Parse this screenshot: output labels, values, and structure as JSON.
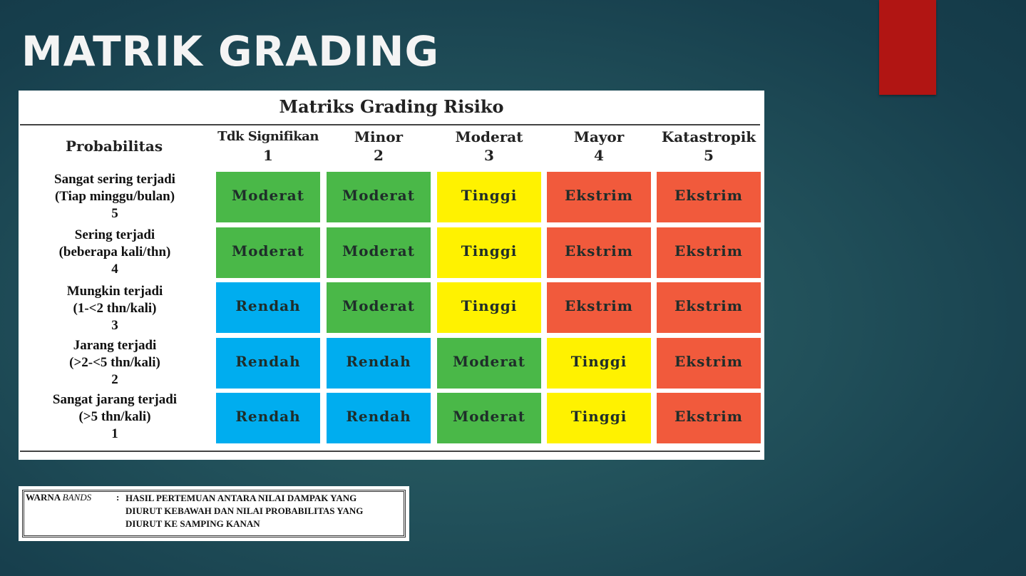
{
  "slide": {
    "title": "MATRIK GRADING",
    "accent_color": "#b11513"
  },
  "matrix": {
    "title": "Matriks Grading Risiko",
    "probability_header": "Probabilitas",
    "columns": [
      {
        "name": "Tdk Signifikan",
        "num": "1"
      },
      {
        "name": "Minor",
        "num": "2"
      },
      {
        "name": "Moderat",
        "num": "3"
      },
      {
        "name": "Mayor",
        "num": "4"
      },
      {
        "name": "Katastropik",
        "num": "5"
      }
    ],
    "rows": [
      {
        "line1": "Sangat sering terjadi",
        "line2": "(Tiap minggu/bulan)",
        "num": "5",
        "cells": [
          "Moderat",
          "Moderat",
          "Tinggi",
          "Ekstrim",
          "Ekstrim"
        ]
      },
      {
        "line1": "Sering terjadi",
        "line2": "(beberapa kali/thn)",
        "num": "4",
        "cells": [
          "Moderat",
          "Moderat",
          "Tinggi",
          "Ekstrim",
          "Ekstrim"
        ]
      },
      {
        "line1": "Mungkin terjadi",
        "line2": "(1-<2 thn/kali)",
        "num": "3",
        "cells": [
          "Rendah",
          "Moderat",
          "Tinggi",
          "Ekstrim",
          "Ekstrim"
        ]
      },
      {
        "line1": "Jarang terjadi",
        "line2": "(>2-<5 thn/kali)",
        "num": "2",
        "cells": [
          "Rendah",
          "Rendah",
          "Moderat",
          "Tinggi",
          "Ekstrim"
        ]
      },
      {
        "line1": "Sangat jarang terjadi",
        "line2": "(>5 thn/kali)",
        "num": "1",
        "cells": [
          "Rendah",
          "Rendah",
          "Moderat",
          "Tinggi",
          "Ekstrim"
        ]
      }
    ],
    "level_colors": {
      "Rendah": "#00adef",
      "Moderat": "#4ab848",
      "Tinggi": "#fff200",
      "Ekstrim": "#f15a3c"
    }
  },
  "legend": {
    "label_main": "WARNA",
    "label_italic": "BANDS",
    "colon": ":",
    "lines": [
      "HASIL PERTEMUAN ANTARA NILAI DAMPAK YANG",
      "DIURUT KEBAWAH DAN NILAI PROBABILITAS YANG",
      "DIURUT KE SAMPING KANAN"
    ]
  }
}
